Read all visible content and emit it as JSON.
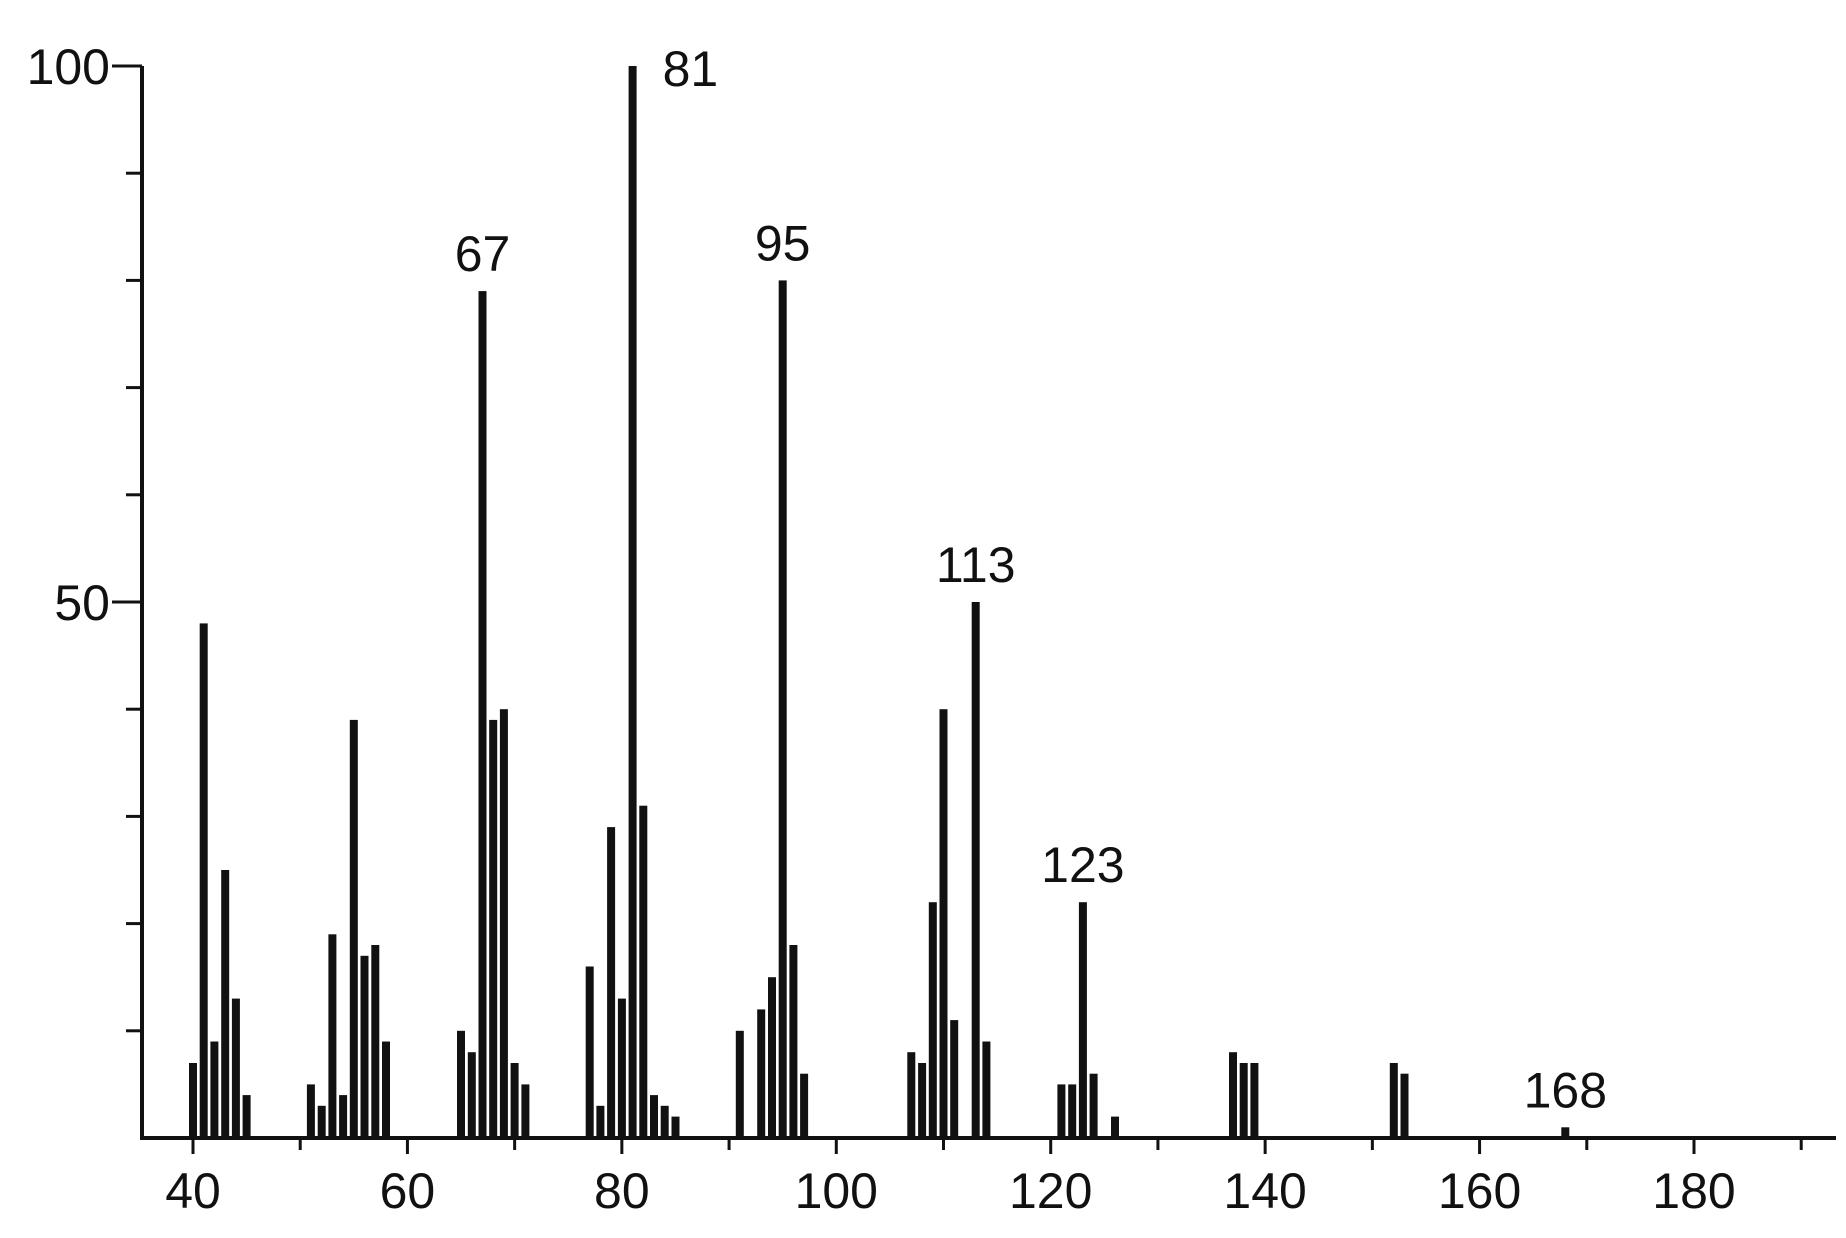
{
  "chart_data": {
    "type": "bar",
    "title": "",
    "xlabel": "",
    "ylabel": "",
    "xlim": [
      35,
      192
    ],
    "ylim": [
      0,
      100
    ],
    "grid": false,
    "legend": "none",
    "colors": {
      "bars": "#111111",
      "axis": "#111111",
      "background": "#ffffff"
    },
    "x_ticks": {
      "major_values": [
        40,
        60,
        80,
        100,
        120,
        140,
        160,
        180
      ],
      "major_labels": [
        "40",
        "60",
        "80",
        "100",
        "120",
        "140",
        "160",
        "180"
      ],
      "minor_values": [
        50,
        70,
        90,
        110,
        130,
        150,
        170,
        190
      ]
    },
    "y_ticks": {
      "values": [
        10,
        20,
        30,
        40,
        50,
        60,
        70,
        80,
        90,
        100
      ],
      "labeled_values": [
        50,
        100
      ],
      "labels": [
        "50",
        "100"
      ]
    },
    "series": [
      {
        "x": [
          40,
          41,
          42,
          43,
          44,
          45,
          51,
          52,
          53,
          54,
          55,
          56,
          57,
          58,
          65,
          66,
          67,
          68,
          69,
          70,
          71,
          77,
          78,
          79,
          80,
          81,
          82,
          83,
          84,
          85,
          91,
          93,
          94,
          95,
          96,
          97,
          107,
          108,
          109,
          110,
          111,
          113,
          114,
          121,
          122,
          123,
          124,
          126,
          137,
          138,
          139,
          152,
          153,
          168
        ],
        "y": [
          7,
          48,
          9,
          25,
          13,
          4,
          5,
          3,
          19,
          4,
          39,
          17,
          18,
          9,
          10,
          8,
          79,
          39,
          40,
          7,
          5,
          16,
          3,
          29,
          13,
          100,
          31,
          4,
          3,
          2,
          10,
          12,
          15,
          80,
          18,
          6,
          8,
          7,
          22,
          40,
          11,
          50,
          9,
          5,
          5,
          22,
          6,
          2,
          8,
          7,
          7,
          7,
          6,
          1
        ]
      }
    ],
    "annotations": [
      {
        "x": 67,
        "text": "67"
      },
      {
        "x": 81,
        "text": "81"
      },
      {
        "x": 95,
        "text": "95"
      },
      {
        "x": 113,
        "text": "113"
      },
      {
        "x": 123,
        "text": "123"
      },
      {
        "x": 168,
        "text": "168"
      }
    ]
  }
}
